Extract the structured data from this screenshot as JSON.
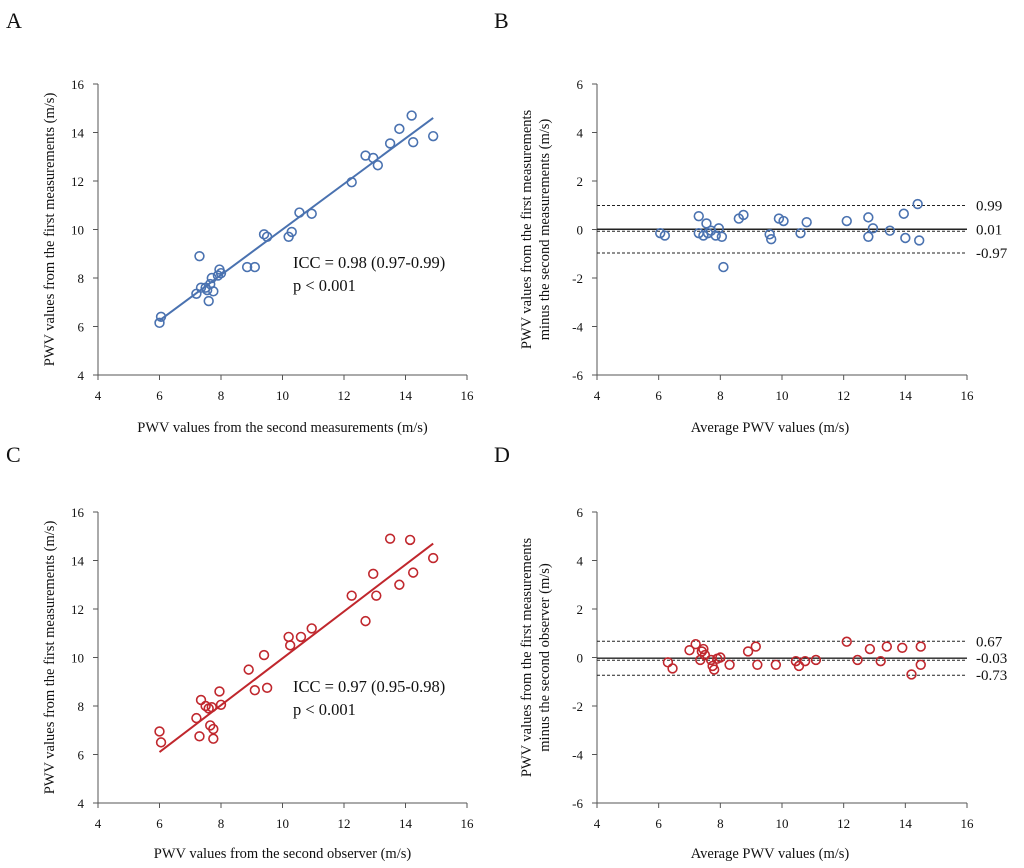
{
  "chart_data": [
    {
      "panel": "A",
      "type": "scatter",
      "xlabel": "PWV values from the second measurements (m/s)",
      "ylabel": "PWV values from the first measurements (m/s)",
      "xlim": [
        4,
        16
      ],
      "ylim": [
        4,
        16
      ],
      "xticks": [
        4,
        6,
        8,
        10,
        12,
        14,
        16
      ],
      "yticks": [
        4,
        6,
        8,
        10,
        12,
        14,
        16
      ],
      "color": "#4a72b0",
      "fit_line": {
        "x": [
          6.0,
          14.9
        ],
        "y": [
          6.25,
          14.6
        ]
      },
      "annotation": [
        "ICC = 0.98 (0.97-0.99)",
        "p < 0.001"
      ],
      "points": [
        [
          6.0,
          6.15
        ],
        [
          6.05,
          6.4
        ],
        [
          7.2,
          7.35
        ],
        [
          7.3,
          8.9
        ],
        [
          7.35,
          7.6
        ],
        [
          7.5,
          7.6
        ],
        [
          7.55,
          7.5
        ],
        [
          7.6,
          7.05
        ],
        [
          7.65,
          7.75
        ],
        [
          7.7,
          8.0
        ],
        [
          7.75,
          7.45
        ],
        [
          7.9,
          8.1
        ],
        [
          7.95,
          8.35
        ],
        [
          8.0,
          8.2
        ],
        [
          8.85,
          8.45
        ],
        [
          9.1,
          8.45
        ],
        [
          9.4,
          9.8
        ],
        [
          9.5,
          9.7
        ],
        [
          10.2,
          9.7
        ],
        [
          10.3,
          9.9
        ],
        [
          10.55,
          10.7
        ],
        [
          10.95,
          10.65
        ],
        [
          12.25,
          11.95
        ],
        [
          12.7,
          13.05
        ],
        [
          12.95,
          12.95
        ],
        [
          13.1,
          12.65
        ],
        [
          13.5,
          13.55
        ],
        [
          13.8,
          14.15
        ],
        [
          14.2,
          14.7
        ],
        [
          14.25,
          13.6
        ],
        [
          14.9,
          13.85
        ]
      ]
    },
    {
      "panel": "B",
      "type": "scatter",
      "xlabel": "Average PWV values (m/s)",
      "ylabel": [
        "PWV values from the first measurements",
        "minus the second measurements (m/s)"
      ],
      "xlim": [
        4,
        16
      ],
      "ylim": [
        -6,
        6
      ],
      "xticks": [
        4,
        6,
        8,
        10,
        12,
        14,
        16
      ],
      "yticks": [
        -6,
        -4,
        -2,
        0,
        2,
        4,
        6
      ],
      "color": "#4a72b0",
      "ref_lines": [
        {
          "y": 0.99,
          "label": "0.99",
          "style": "dashed"
        },
        {
          "y": 0.01,
          "label": "0.01",
          "style": "solid-dashed"
        },
        {
          "y": -0.97,
          "label": "-0.97",
          "style": "dashed"
        }
      ],
      "points": [
        [
          6.05,
          -0.15
        ],
        [
          6.2,
          -0.25
        ],
        [
          7.3,
          0.55
        ],
        [
          7.3,
          -0.15
        ],
        [
          7.45,
          -0.25
        ],
        [
          7.55,
          0.25
        ],
        [
          7.6,
          -0.15
        ],
        [
          7.7,
          -0.05
        ],
        [
          7.85,
          -0.25
        ],
        [
          7.95,
          0.05
        ],
        [
          8.05,
          -0.3
        ],
        [
          8.1,
          -1.55
        ],
        [
          8.6,
          0.45
        ],
        [
          8.75,
          0.6
        ],
        [
          9.6,
          -0.2
        ],
        [
          9.65,
          -0.4
        ],
        [
          9.9,
          0.45
        ],
        [
          10.05,
          0.35
        ],
        [
          10.6,
          -0.15
        ],
        [
          10.8,
          0.3
        ],
        [
          12.1,
          0.35
        ],
        [
          12.8,
          0.5
        ],
        [
          12.8,
          -0.3
        ],
        [
          12.95,
          0.05
        ],
        [
          13.5,
          -0.05
        ],
        [
          13.95,
          0.65
        ],
        [
          14.0,
          -0.35
        ],
        [
          14.4,
          1.05
        ],
        [
          14.45,
          -0.45
        ]
      ]
    },
    {
      "panel": "C",
      "type": "scatter",
      "xlabel": "PWV values from the second observer (m/s)",
      "ylabel": "PWV values from the first measurements (m/s)",
      "xlim": [
        4,
        16
      ],
      "ylim": [
        4,
        16
      ],
      "xticks": [
        4,
        6,
        8,
        10,
        12,
        14,
        16
      ],
      "yticks": [
        4,
        6,
        8,
        10,
        12,
        14,
        16
      ],
      "color": "#c0272d",
      "fit_line": {
        "x": [
          6.0,
          14.9
        ],
        "y": [
          6.1,
          14.7
        ]
      },
      "annotation": [
        "ICC = 0.97 (0.95-0.98)",
        "p < 0.001"
      ],
      "points": [
        [
          6.0,
          6.95
        ],
        [
          6.05,
          6.5
        ],
        [
          7.2,
          7.5
        ],
        [
          7.3,
          6.75
        ],
        [
          7.35,
          8.25
        ],
        [
          7.5,
          8.0
        ],
        [
          7.6,
          7.9
        ],
        [
          7.65,
          7.2
        ],
        [
          7.7,
          7.95
        ],
        [
          7.75,
          6.65
        ],
        [
          7.75,
          7.05
        ],
        [
          7.95,
          8.6
        ],
        [
          8.0,
          8.05
        ],
        [
          8.9,
          9.5
        ],
        [
          9.1,
          8.65
        ],
        [
          9.4,
          10.1
        ],
        [
          9.5,
          8.75
        ],
        [
          10.2,
          10.85
        ],
        [
          10.25,
          10.5
        ],
        [
          10.6,
          10.85
        ],
        [
          10.95,
          11.2
        ],
        [
          12.25,
          12.55
        ],
        [
          12.7,
          11.5
        ],
        [
          12.95,
          13.45
        ],
        [
          13.05,
          12.55
        ],
        [
          13.5,
          14.9
        ],
        [
          13.8,
          13.0
        ],
        [
          14.15,
          14.85
        ],
        [
          14.25,
          13.5
        ],
        [
          14.9,
          14.1
        ]
      ]
    },
    {
      "panel": "D",
      "type": "scatter",
      "xlabel": "Average PWV values (m/s)",
      "ylabel": [
        "PWV values from the first measurements",
        "minus the second observer (m/s)"
      ],
      "xlim": [
        4,
        16
      ],
      "ylim": [
        -6,
        6
      ],
      "xticks": [
        4,
        6,
        8,
        10,
        12,
        14,
        16
      ],
      "yticks": [
        -6,
        -4,
        -2,
        0,
        2,
        4,
        6
      ],
      "color": "#c0272d",
      "ref_lines": [
        {
          "y": 0.67,
          "label": "0.67",
          "style": "dashed"
        },
        {
          "y": -0.03,
          "label": "-0.03",
          "style": "solid-dashed"
        },
        {
          "y": -0.73,
          "label": "-0.73",
          "style": "dashed"
        }
      ],
      "points": [
        [
          6.3,
          -0.2
        ],
        [
          6.45,
          -0.45
        ],
        [
          7.0,
          0.3
        ],
        [
          7.2,
          0.55
        ],
        [
          7.35,
          -0.1
        ],
        [
          7.4,
          0.25
        ],
        [
          7.45,
          0.35
        ],
        [
          7.5,
          0.1
        ],
        [
          7.7,
          -0.1
        ],
        [
          7.75,
          -0.35
        ],
        [
          7.8,
          -0.5
        ],
        [
          7.9,
          -0.05
        ],
        [
          8.0,
          0.0
        ],
        [
          8.3,
          -0.3
        ],
        [
          8.9,
          0.25
        ],
        [
          9.15,
          0.45
        ],
        [
          9.2,
          -0.3
        ],
        [
          9.8,
          -0.3
        ],
        [
          10.45,
          -0.15
        ],
        [
          10.55,
          -0.35
        ],
        [
          10.75,
          -0.15
        ],
        [
          11.1,
          -0.1
        ],
        [
          12.1,
          0.65
        ],
        [
          12.45,
          -0.1
        ],
        [
          12.85,
          0.35
        ],
        [
          13.2,
          -0.15
        ],
        [
          13.4,
          0.45
        ],
        [
          13.9,
          0.4
        ],
        [
          14.2,
          -0.7
        ],
        [
          14.5,
          -0.3
        ],
        [
          14.5,
          0.45
        ]
      ]
    }
  ]
}
